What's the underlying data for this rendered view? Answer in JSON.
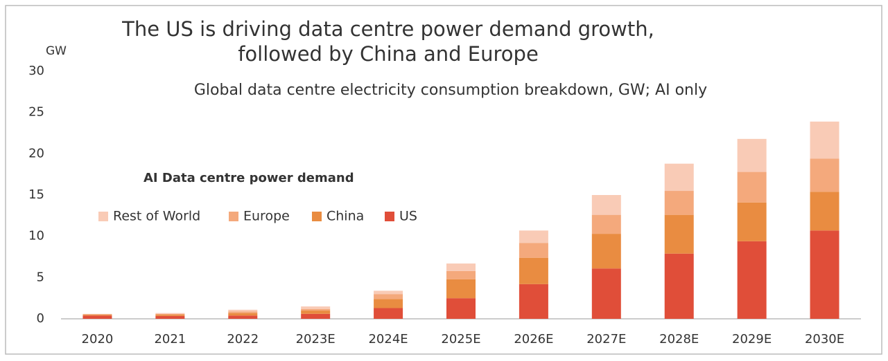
{
  "chart_data": {
    "type": "stacked_bar",
    "title": [
      "The US is driving data centre power demand growth,",
      "followed by China and Europe"
    ],
    "subtitle": "Global data centre electricity consumption breakdown, GW; AI only",
    "y_label": "GW",
    "legend_title": "AI Data centre power demand",
    "categories": [
      "2020",
      "2021",
      "2022",
      "2023E",
      "2024E",
      "2025E",
      "2026E",
      "2027E",
      "2028E",
      "2029E",
      "2030E"
    ],
    "series": [
      {
        "name": "US",
        "color": "#e04e39",
        "values": [
          0.4,
          0.35,
          0.4,
          0.6,
          1.3,
          2.5,
          4.2,
          6.1,
          7.9,
          9.4,
          10.7
        ]
      },
      {
        "name": "China",
        "color": "#e98c41",
        "values": [
          0.1,
          0.15,
          0.3,
          0.4,
          1.1,
          2.3,
          3.2,
          4.2,
          4.7,
          4.7,
          4.7
        ]
      },
      {
        "name": "Europe",
        "color": "#f4a97c",
        "values": [
          0.05,
          0.1,
          0.2,
          0.2,
          0.6,
          1.0,
          1.8,
          2.3,
          2.9,
          3.7,
          4.0
        ]
      },
      {
        "name": "Rest of World",
        "color": "#f9cbb6",
        "values": [
          0.05,
          0.1,
          0.2,
          0.3,
          0.4,
          0.9,
          1.5,
          2.4,
          3.3,
          4.0,
          4.5
        ]
      }
    ],
    "ylim": [
      0,
      30
    ],
    "yticks": [
      0,
      5,
      10,
      15,
      20,
      25,
      30
    ],
    "grid": false
  }
}
